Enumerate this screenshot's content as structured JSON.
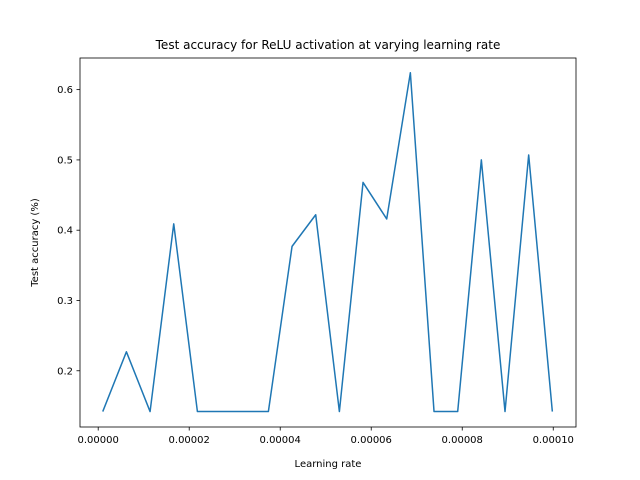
{
  "chart_data": {
    "type": "line",
    "title": "Test accuracy for ReLU activation at varying learning rate",
    "xlabel": "Learning rate",
    "ylabel": "Test accuracy (%)",
    "xlim": [
      -4e-06,
      0.000105
    ],
    "ylim": [
      0.12,
      0.645
    ],
    "grid": false,
    "legend": "none",
    "x_ticks": [
      0.0,
      2e-05,
      4e-05,
      6e-05,
      8e-05,
      0.0001
    ],
    "x_tick_labels": [
      "0.00000",
      "0.00002",
      "0.00004",
      "0.00006",
      "0.00008",
      "0.00010"
    ],
    "y_ticks": [
      0.2,
      0.3,
      0.4,
      0.5,
      0.6
    ],
    "y_tick_labels": [
      "0.2",
      "0.3",
      "0.4",
      "0.5",
      "0.6"
    ],
    "series": [
      {
        "color": "#1f77b4",
        "x": [
          1e-06,
          6.2e-06,
          1.14e-05,
          1.66e-05,
          2.18e-05,
          2.7e-05,
          3.22e-05,
          3.74e-05,
          4.26e-05,
          4.78e-05,
          5.3e-05,
          5.82e-05,
          6.34e-05,
          6.86e-05,
          7.38e-05,
          7.9e-05,
          8.42e-05,
          8.94e-05,
          9.46e-05,
          9.98e-05
        ],
        "y": [
          0.142,
          0.227,
          0.142,
          0.409,
          0.142,
          0.142,
          0.142,
          0.142,
          0.377,
          0.422,
          0.142,
          0.468,
          0.416,
          0.624,
          0.142,
          0.142,
          0.5,
          0.142,
          0.507,
          0.142
        ]
      }
    ]
  }
}
